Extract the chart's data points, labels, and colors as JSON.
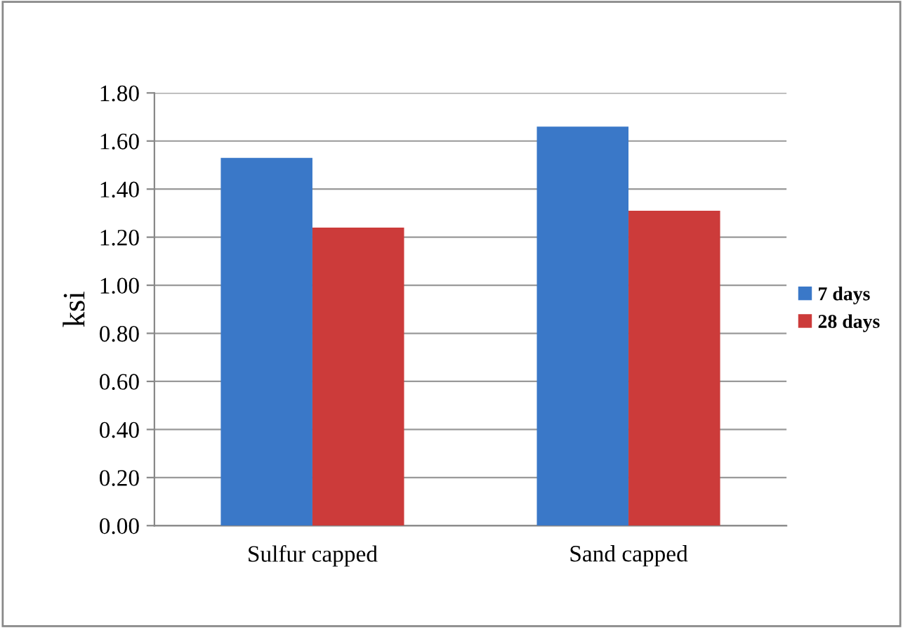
{
  "chart_data": {
    "type": "bar",
    "ylabel": "ksi",
    "categories": [
      "Sulfur capped",
      "Sand capped"
    ],
    "series": [
      {
        "name": "7 days",
        "color": "#3a78c8",
        "values": [
          1.53,
          1.66
        ]
      },
      {
        "name": "28 days",
        "color": "#cc3b3a",
        "values": [
          1.24,
          1.31
        ]
      }
    ],
    "ylim": [
      0,
      1.8
    ],
    "yticks": [
      {
        "value": 0,
        "label": "0.00"
      },
      {
        "value": 0.2,
        "label": "0.20"
      },
      {
        "value": 0.4,
        "label": "0.40"
      },
      {
        "value": 0.6,
        "label": "0.60"
      },
      {
        "value": 0.8,
        "label": "0.80"
      },
      {
        "value": 1.0,
        "label": "1.00"
      },
      {
        "value": 1.2,
        "label": "1.20"
      },
      {
        "value": 1.4,
        "label": "1.40"
      },
      {
        "value": 1.6,
        "label": "1.60"
      },
      {
        "value": 1.8,
        "label": "1.80"
      }
    ],
    "grid": "y",
    "legend": "right"
  }
}
